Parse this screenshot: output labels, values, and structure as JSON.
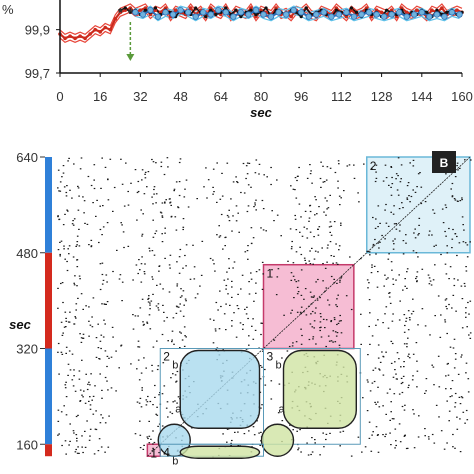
{
  "chart_data": [
    {
      "type": "line",
      "title": "",
      "xlabel": "sec",
      "ylabel": "%",
      "xlim": [
        0,
        160
      ],
      "ylim": [
        99.7,
        100.0
      ],
      "x_ticks": [
        "0",
        "16",
        "32",
        "48",
        "64",
        "80",
        "96",
        "112",
        "128",
        "144",
        "160"
      ],
      "y_ticks": [
        "99,7",
        "99,9"
      ],
      "y_unit_label": "%",
      "markers": [
        {
          "symbol": "*",
          "x": 24
        },
        {
          "symbol": "*",
          "x": 28
        }
      ],
      "arrow": {
        "x": 28,
        "color": "#5a9a3a",
        "style": "dashed-down"
      },
      "series": [
        {
          "color": "#cc2a1c",
          "band_color": "#e8463a",
          "x": [
            0,
            2,
            4,
            6,
            8,
            10,
            12,
            14,
            16,
            18,
            20,
            22,
            24,
            26,
            28,
            30,
            32,
            34,
            36,
            38,
            40,
            42,
            44,
            46,
            48,
            50,
            52,
            54,
            56,
            58,
            60,
            62,
            64,
            66,
            68,
            70,
            72,
            74,
            76,
            78,
            80,
            82,
            84,
            86,
            88,
            90,
            92,
            94,
            96,
            98,
            100,
            102,
            104,
            106,
            108,
            110,
            112,
            114,
            116,
            118,
            120,
            122,
            124,
            126,
            128,
            130,
            132,
            134,
            136,
            138,
            140,
            142,
            144,
            146,
            148,
            150,
            152,
            154,
            156,
            158,
            160
          ],
          "values": [
            99.88,
            99.86,
            99.87,
            99.86,
            99.87,
            99.86,
            99.88,
            99.9,
            99.89,
            99.91,
            99.9,
            99.95,
            99.98,
            99.99,
            100.0,
            99.98,
            99.99,
            100.0,
            99.97,
            99.99,
            99.98,
            100.0,
            99.96,
            99.99,
            99.98,
            99.97,
            100.0,
            99.97,
            99.99,
            99.96,
            100.0,
            99.98,
            99.97,
            100.0,
            99.96,
            99.99,
            99.98,
            99.97,
            100.0,
            99.96,
            99.99,
            99.98,
            99.97,
            100.0,
            99.97,
            99.98,
            99.96,
            99.99,
            99.98,
            100.0,
            99.97,
            99.96,
            99.99,
            99.98,
            99.97,
            100.0,
            99.98,
            99.96,
            99.99,
            99.97,
            99.98,
            100.0,
            99.96,
            99.99,
            99.98,
            99.97,
            99.99,
            99.96,
            100.0,
            99.98,
            99.97,
            99.99,
            99.98,
            99.96,
            99.99,
            99.98,
            100.0,
            99.97,
            99.98,
            99.99,
            99.98
          ]
        },
        {
          "color": "#111111",
          "x": [
            24,
            26,
            28,
            30,
            32,
            34,
            36,
            38,
            40,
            42,
            44,
            46,
            48,
            50,
            52,
            54,
            56,
            58,
            60,
            62,
            64,
            66,
            68,
            70,
            72,
            74,
            76,
            78,
            80,
            82,
            84,
            86,
            88,
            90,
            92,
            94,
            96,
            98,
            100,
            102,
            104,
            106,
            108,
            110,
            112,
            114,
            116,
            118,
            120,
            122,
            124,
            126,
            128,
            130,
            132,
            134,
            136,
            138,
            140,
            142,
            144,
            146,
            148,
            150,
            152,
            154,
            156,
            158,
            160
          ],
          "values": [
            99.99,
            100.0,
            99.98,
            99.99,
            99.97,
            99.99,
            99.98,
            100.0,
            99.97,
            99.99,
            99.98,
            99.96,
            99.99,
            99.98,
            99.97,
            100.0,
            99.98,
            99.96,
            99.99,
            99.97,
            99.98,
            100.0,
            99.97,
            99.99,
            99.96,
            99.98,
            99.99,
            99.97,
            99.98,
            100.0,
            99.96,
            99.99,
            99.98,
            99.97,
            99.99,
            99.98,
            99.96,
            100.0,
            99.97,
            99.98,
            99.99,
            99.97,
            99.96,
            99.99,
            99.98,
            99.97,
            100.0,
            99.98,
            99.96,
            99.99,
            99.97,
            99.98,
            99.96,
            99.99,
            99.98,
            99.97,
            99.99,
            99.96,
            99.98,
            99.97,
            99.99,
            99.98,
            99.96,
            99.99,
            99.97,
            99.98,
            99.99,
            99.97,
            99.98
          ]
        },
        {
          "color": "#2a6fb8",
          "marker_fill": "#6fb3dd",
          "band_color": "#5fc0e8",
          "x": [
            30,
            33,
            36,
            39,
            42,
            45,
            48,
            51,
            54,
            57,
            60,
            63,
            66,
            69,
            72,
            75,
            78,
            81,
            84,
            87,
            90,
            93,
            96,
            99,
            102,
            105,
            108,
            111,
            114,
            117,
            120,
            123,
            126,
            129,
            132,
            135,
            138,
            141,
            144,
            147,
            150,
            153,
            156,
            159
          ],
          "values": [
            99.98,
            99.97,
            99.99,
            99.96,
            99.98,
            99.97,
            99.99,
            99.98,
            99.96,
            99.98,
            99.97,
            99.99,
            99.98,
            99.96,
            99.98,
            99.97,
            99.99,
            99.97,
            99.96,
            99.98,
            99.97,
            99.99,
            99.98,
            99.96,
            99.97,
            99.98,
            99.96,
            99.97,
            99.98,
            99.96,
            99.97,
            99.98,
            99.97,
            99.96,
            99.97,
            99.98,
            99.96,
            99.97,
            99.98,
            99.96,
            99.97,
            99.96,
            99.98,
            99.97
          ]
        }
      ]
    },
    {
      "type": "heatmap",
      "subtype": "recurrence-plot",
      "title": "",
      "panel_label": "B",
      "ylabel": "sec",
      "xlim": [
        0,
        640
      ],
      "ylim": [
        0,
        640
      ],
      "y_ticks": [
        "160",
        "320",
        "480",
        "640"
      ],
      "diagonal": true,
      "side_bar_segments": [
        {
          "from": 480,
          "to": 640,
          "color": "#2f80d8"
        },
        {
          "from": 320,
          "to": 480,
          "color": "#d42a1e"
        },
        {
          "from": 160,
          "to": 320,
          "color": "#2f80d8"
        },
        {
          "from": 140,
          "to": 160,
          "color": "#d42a1e"
        }
      ],
      "regions": [
        {
          "label": "1",
          "range": [
            320,
            460
          ],
          "fill": "#f3a7c6",
          "stroke": "#c43a6a"
        },
        {
          "label": "2",
          "range": [
            480,
            640
          ],
          "fill": "#d4ecf6",
          "stroke": "#6ab8d8"
        },
        {
          "label": "1",
          "range": [
            140,
            160
          ],
          "fill": "#f3a7c6",
          "stroke": "#c43a6a"
        }
      ],
      "blocks": [
        {
          "label": "2",
          "x": [
            160,
            320
          ],
          "y": [
            160,
            320
          ],
          "fill": "#a9d9ee",
          "sub_labels": [
            "b",
            "a"
          ]
        },
        {
          "label": "3",
          "x": [
            320,
            470
          ],
          "y": [
            160,
            320
          ],
          "fill": "#cfe4a2",
          "sub_labels": [
            "b",
            "a"
          ]
        },
        {
          "label": "4",
          "x": [
            160,
            320
          ],
          "y": [
            140,
            160
          ],
          "fill": "#cfe4a2",
          "sub_labels": [
            "b"
          ]
        }
      ]
    }
  ]
}
